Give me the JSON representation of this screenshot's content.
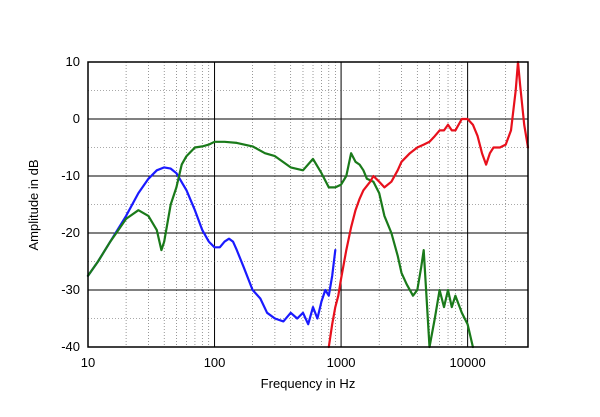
{
  "chart_data": {
    "type": "line",
    "title": "",
    "xlabel": "Frequency in Hz",
    "ylabel": "Amplitude in dB",
    "x_scale": "log",
    "xlim": [
      10,
      30000
    ],
    "ylim": [
      -40,
      10
    ],
    "x_ticks": [
      {
        "value": 10,
        "label": "10"
      },
      {
        "value": 100,
        "label": "100"
      },
      {
        "value": 1000,
        "label": "1000"
      },
      {
        "value": 10000,
        "label": "10000"
      }
    ],
    "y_ticks": [
      {
        "value": 10,
        "label": "10"
      },
      {
        "value": 0,
        "label": "0"
      },
      {
        "value": -10,
        "label": "-10"
      },
      {
        "value": -20,
        "label": "-20"
      },
      {
        "value": -30,
        "label": "-30"
      },
      {
        "value": -40,
        "label": "-40"
      }
    ],
    "grid": true,
    "legend": "none",
    "series": [
      {
        "color": "#1a1aff",
        "x": [
          10,
          12,
          15,
          20,
          25,
          30,
          35,
          40,
          45,
          50,
          60,
          70,
          80,
          90,
          100,
          110,
          120,
          130,
          140,
          150,
          170,
          200,
          230,
          260,
          300,
          350,
          400,
          450,
          500,
          550,
          600,
          650,
          700,
          750,
          800,
          850,
          900
        ],
        "y": [
          -27.5,
          -25,
          -21.5,
          -17,
          -13,
          -10.5,
          -9,
          -8.5,
          -8.7,
          -9.5,
          -12.5,
          -16,
          -19.5,
          -21.5,
          -22.5,
          -22.5,
          -21.5,
          -21,
          -21.5,
          -23,
          -26,
          -30,
          -31.5,
          -34,
          -35,
          -35.5,
          -34,
          -35,
          -34,
          -36,
          -33,
          -35,
          -32,
          -30,
          -31,
          -27.5,
          -23
        ]
      },
      {
        "color": "#1a7a1a",
        "x": [
          10,
          12,
          15,
          18,
          20,
          25,
          30,
          35,
          38,
          40,
          45,
          50,
          55,
          60,
          70,
          80,
          90,
          100,
          120,
          150,
          200,
          250,
          300,
          400,
          500,
          600,
          700,
          800,
          900,
          1000,
          1100,
          1200,
          1300,
          1400,
          1500,
          1600,
          1800,
          2000,
          2200,
          2500,
          2800,
          3000,
          3300,
          3700,
          4000,
          4300,
          4500,
          4700,
          5000,
          5500,
          6000,
          6500,
          7000,
          7500,
          8000,
          9000,
          10000,
          11000
        ],
        "y": [
          -27.5,
          -25,
          -21.5,
          -19,
          -17.5,
          -16,
          -17,
          -19.5,
          -23,
          -21.5,
          -15,
          -12,
          -8,
          -6.5,
          -5,
          -4.8,
          -4.5,
          -4,
          -4,
          -4.2,
          -4.8,
          -6,
          -6.5,
          -8.5,
          -9,
          -7,
          -9.5,
          -12,
          -12,
          -11.5,
          -10,
          -6,
          -7.5,
          -8,
          -9,
          -10.5,
          -11,
          -13,
          -17,
          -20,
          -24,
          -27,
          -29,
          -31,
          -30,
          -26,
          -23,
          -30,
          -40,
          -35,
          -30,
          -33,
          -30,
          -33,
          -31,
          -34,
          -36,
          -40
        ]
      },
      {
        "color": "#e8101c",
        "x": [
          800,
          850,
          900,
          950,
          1000,
          1100,
          1200,
          1300,
          1400,
          1500,
          1700,
          1800,
          2000,
          2200,
          2500,
          2800,
          3000,
          3500,
          4000,
          4500,
          5000,
          5500,
          6000,
          6500,
          7000,
          7500,
          8000,
          9000,
          10000,
          11000,
          12000,
          13000,
          14000,
          15000,
          16000,
          17000,
          18000,
          20000,
          22000,
          24000,
          25000,
          26000,
          28000,
          30000
        ],
        "y": [
          -40,
          -36,
          -33,
          -31,
          -28,
          -23,
          -19,
          -16,
          -14,
          -12.5,
          -11,
          -10,
          -11,
          -12,
          -11,
          -9,
          -7.5,
          -6,
          -5,
          -4.5,
          -4,
          -3,
          -2,
          -2,
          -1,
          -2,
          -2,
          0,
          0,
          -1,
          -3,
          -6,
          -8,
          -6,
          -5,
          -5,
          -5,
          -4.5,
          -2,
          5,
          10,
          6,
          -1,
          -5
        ]
      }
    ]
  }
}
